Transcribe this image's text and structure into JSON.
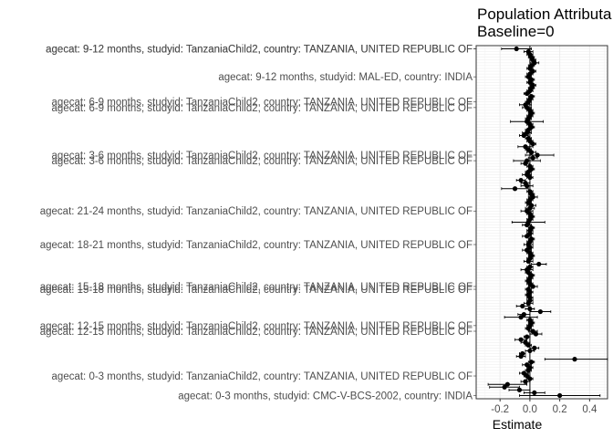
{
  "chart_data": {
    "type": "scatter",
    "subtype": "forest-plot-with-error-bars",
    "title_lines": [
      "Population Attributa",
      "Baseline=0"
    ],
    "xlabel": "Estimate",
    "ylabel": "",
    "xlim": [
      -0.36,
      0.52
    ],
    "xticks": [
      -0.2,
      0.0,
      0.2,
      0.4
    ],
    "xtick_labels": [
      "-0.2",
      "0.0",
      "0.2",
      "0.4"
    ],
    "grid": true,
    "vline_at": 0,
    "visible_labels": [
      "agecat: 9-12 months, studyid: TanzaniaChild2, country: TANZANIA, UNITED REPUBLIC OF",
      "agecat: 9-12 months, studyid: TanzaniaChild2, country: TANZANIA, UNITED REPUBLIC OF",
      "agecat: 9-12 months, studyid: MAL-ED, country: INDIA",
      "agecat: 6-9 months, studyid: TanzaniaChild2, country: TANZANIA, UNITED REPUBLIC OF",
      "agecat: 6-9 months, studyid: TanzaniaChild2, country: TANZANIA, UNITED REPUBLIC OF",
      "agecat: 3-6 months, studyid: TanzaniaChild2, country: TANZANIA, UNITED REPUBLIC OF",
      "agecat: 3-6 months, studyid: TanzaniaChild2, country: TANZANIA, UNITED REPUBLIC OF",
      "agecat: 21-24 months, studyid: TanzaniaChild2, country: TANZANIA, UNITED REPUBLIC OF",
      "agecat: 18-21 months, studyid: TanzaniaChild2, country: TANZANIA, UNITED REPUBLIC OF",
      "agecat: 15-18 months, studyid: TanzaniaChild2, country: TANZANIA, UNITED REPUBLIC OF",
      "agecat: 15-18 months, studyid: TanzaniaChild2, country: TANZANIA, UNITED REPUBLIC OF",
      "agecat: 12-15 months, studyid: TanzaniaChild2, country: TANZANIA, UNITED REPUBLIC OF",
      "agecat: 12-15 months, studyid: TanzaniaChild2, country: TANZANIA, UNITED REPUBLIC OF",
      "agecat: 0-3 months, studyid: TanzaniaChild2, country: TANZANIA, UNITED REPUBLIC OF",
      "agecat: 0-3 months, studyid: CMC-V-BCS-2002, country: INDIA"
    ],
    "estimates": [
      -0.09,
      -0.01,
      0.0,
      0.01,
      0.02,
      0.03,
      0.01,
      0.0,
      0.02,
      0.0,
      -0.01,
      0.01,
      0.0,
      0.02,
      0.01,
      0.0,
      -0.02,
      0.01,
      0.0,
      -0.01,
      -0.03,
      -0.02,
      0.0,
      0.01,
      0.0,
      -0.01,
      -0.02,
      0.0,
      0.01,
      -0.01,
      -0.02,
      -0.04,
      -0.01,
      0.0,
      0.02,
      -0.03,
      -0.01,
      0.01,
      0.05,
      0.02,
      -0.02,
      -0.03,
      0.0,
      0.01,
      -0.01,
      -0.02,
      0.0,
      -0.06,
      -0.03,
      -0.02,
      -0.1,
      0.0,
      0.01,
      0.02,
      0.0,
      -0.01,
      0.01,
      0.0,
      -0.02,
      0.0,
      0.01,
      0.0,
      -0.01,
      -0.02,
      0.01,
      0.0,
      0.0,
      -0.02,
      0.01,
      0.0,
      -0.01,
      0.0,
      -0.02,
      0.0,
      0.01,
      0.0,
      -0.01,
      0.06,
      0.0,
      -0.02,
      -0.01,
      0.01,
      0.0,
      -0.01,
      0.0,
      0.02,
      -0.01,
      0.0,
      -0.01,
      0.0,
      0.0,
      -0.01,
      -0.05,
      0.0,
      0.07,
      -0.04,
      -0.06,
      0.0,
      0.01,
      0.0,
      -0.01,
      0.02,
      0.04,
      -0.02,
      -0.06,
      -0.03,
      -0.01,
      0.03,
      0.0,
      -0.05,
      -0.06,
      0.3,
      0.01,
      -0.02,
      0.0,
      -0.01,
      -0.04,
      -0.02,
      0.0,
      -0.03,
      -0.15,
      -0.17,
      -0.07,
      0.03,
      0.2
    ],
    "ci_lower": [
      -0.19,
      -0.04,
      -0.02,
      -0.01,
      0.0,
      0.0,
      -0.01,
      -0.02,
      0.0,
      -0.02,
      -0.03,
      -0.01,
      -0.02,
      0.0,
      -0.01,
      -0.02,
      -0.04,
      -0.01,
      -0.02,
      -0.03,
      -0.07,
      -0.05,
      -0.02,
      -0.01,
      -0.02,
      -0.03,
      -0.13,
      -0.02,
      -0.01,
      -0.03,
      -0.05,
      -0.07,
      -0.03,
      -0.02,
      0.0,
      -0.08,
      -0.03,
      -0.02,
      -0.03,
      -0.01,
      -0.11,
      -0.06,
      -0.02,
      -0.01,
      -0.03,
      -0.05,
      -0.02,
      -0.09,
      -0.06,
      -0.06,
      -0.19,
      -0.02,
      -0.01,
      -0.01,
      -0.02,
      -0.03,
      -0.02,
      -0.03,
      -0.06,
      -0.02,
      -0.01,
      -0.02,
      -0.12,
      -0.05,
      -0.01,
      -0.02,
      -0.02,
      -0.05,
      -0.01,
      -0.02,
      -0.04,
      -0.02,
      -0.05,
      -0.02,
      -0.01,
      -0.02,
      -0.04,
      0.01,
      -0.02,
      -0.06,
      -0.03,
      -0.01,
      -0.02,
      -0.03,
      -0.02,
      -0.01,
      -0.03,
      -0.02,
      -0.03,
      -0.02,
      -0.02,
      -0.04,
      -0.09,
      -0.03,
      0.0,
      -0.08,
      -0.17,
      -0.02,
      -0.01,
      -0.02,
      -0.03,
      -0.01,
      0.0,
      -0.04,
      -0.1,
      -0.06,
      -0.03,
      0.0,
      -0.03,
      -0.07,
      -0.09,
      0.1,
      -0.01,
      -0.05,
      -0.02,
      -0.03,
      -0.07,
      -0.04,
      -0.02,
      -0.06,
      -0.28,
      -0.27,
      -0.14,
      -0.04,
      -0.07
    ],
    "ci_upper": [
      0.01,
      0.02,
      0.02,
      0.03,
      0.04,
      0.06,
      0.03,
      0.02,
      0.04,
      0.02,
      0.01,
      0.03,
      0.02,
      0.04,
      0.03,
      0.02,
      0.0,
      0.03,
      0.02,
      0.01,
      0.01,
      0.01,
      0.02,
      0.03,
      0.02,
      0.01,
      0.09,
      0.02,
      0.03,
      0.01,
      0.01,
      -0.01,
      0.01,
      0.02,
      0.04,
      0.02,
      0.01,
      0.04,
      0.16,
      0.05,
      0.07,
      0.0,
      0.02,
      0.03,
      0.01,
      0.01,
      0.02,
      -0.03,
      0.0,
      0.02,
      -0.01,
      0.02,
      0.03,
      0.05,
      0.02,
      0.01,
      0.04,
      0.03,
      0.02,
      0.02,
      0.03,
      0.02,
      0.1,
      0.01,
      0.03,
      0.02,
      0.02,
      0.01,
      0.03,
      0.02,
      0.02,
      0.02,
      0.01,
      0.02,
      0.03,
      0.02,
      0.02,
      0.11,
      0.02,
      0.02,
      0.01,
      0.03,
      0.02,
      0.01,
      0.02,
      0.05,
      0.01,
      0.02,
      0.01,
      0.02,
      0.02,
      0.02,
      -0.01,
      0.03,
      0.14,
      0.0,
      0.05,
      0.02,
      0.03,
      0.02,
      0.01,
      0.05,
      0.08,
      0.0,
      -0.02,
      0.0,
      0.01,
      0.06,
      0.03,
      -0.03,
      -0.03,
      0.52,
      0.03,
      0.01,
      0.02,
      0.01,
      -0.01,
      0.0,
      0.02,
      0.0,
      -0.02,
      -0.07,
      0.0,
      0.1,
      0.47
    ]
  }
}
